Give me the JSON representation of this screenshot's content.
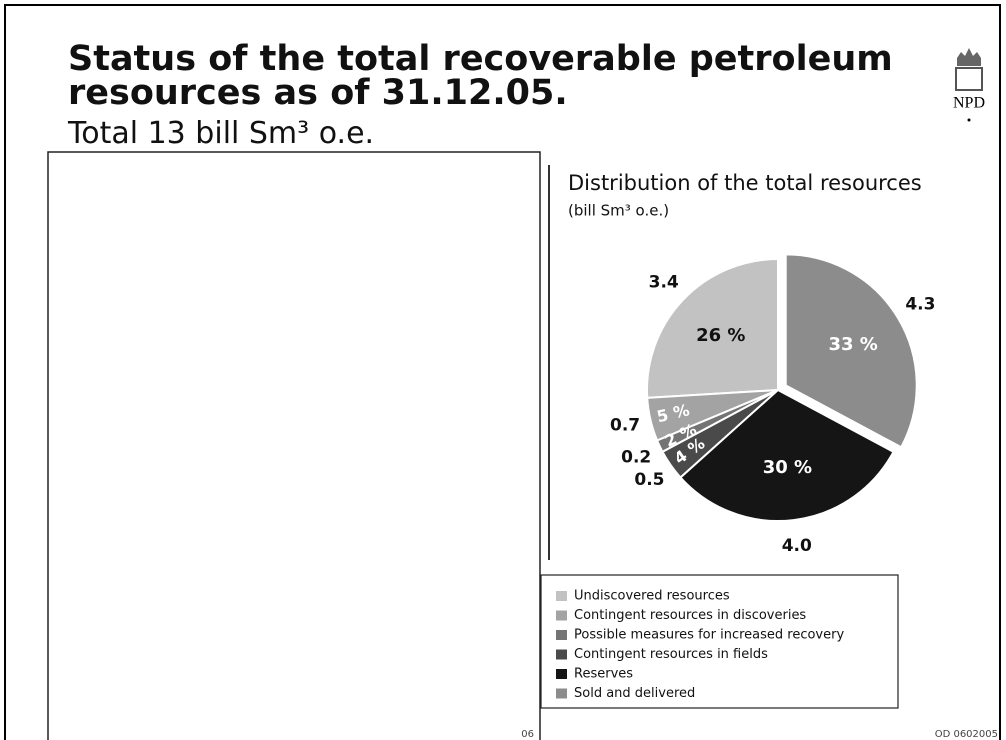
{
  "header": {
    "title": "Status of the total recoverable petroleum resources as of 31.12.05.",
    "subtitle": "Total 13 bill Sm³ o.e.",
    "logo_text": "NPD"
  },
  "chart_data": {
    "type": "pie",
    "title": "Distribution of the total resources",
    "subtitle": "(bill Sm³ o.e.)",
    "categories": [
      "Undiscovered resources",
      "Contingent resources in discoveries",
      "Possible measures for increased recovery",
      "Contingent resources in fields",
      "Reserves",
      "Sold and delivered"
    ],
    "values": [
      3.4,
      0.7,
      0.2,
      0.5,
      4.0,
      4.3
    ],
    "value_labels": [
      "3.4",
      "0.7",
      "0.2",
      "0.5",
      "4.0",
      "4.3"
    ],
    "percentages": [
      26,
      5,
      2,
      4,
      30,
      33
    ],
    "percentage_labels": [
      "26 %",
      "5 %",
      "2 %",
      "4 %",
      "30 %",
      "33 %"
    ],
    "colors": [
      "#c2c2c2",
      "#a3a3a3",
      "#747474",
      "#4a4a4a",
      "#151515",
      "#8c8c8c"
    ],
    "exploded": [
      false,
      false,
      false,
      false,
      false,
      true
    ],
    "direction": "counterclockwise",
    "legend": "bottom"
  },
  "footer": {
    "left": "06",
    "right": "OD 0602005"
  }
}
